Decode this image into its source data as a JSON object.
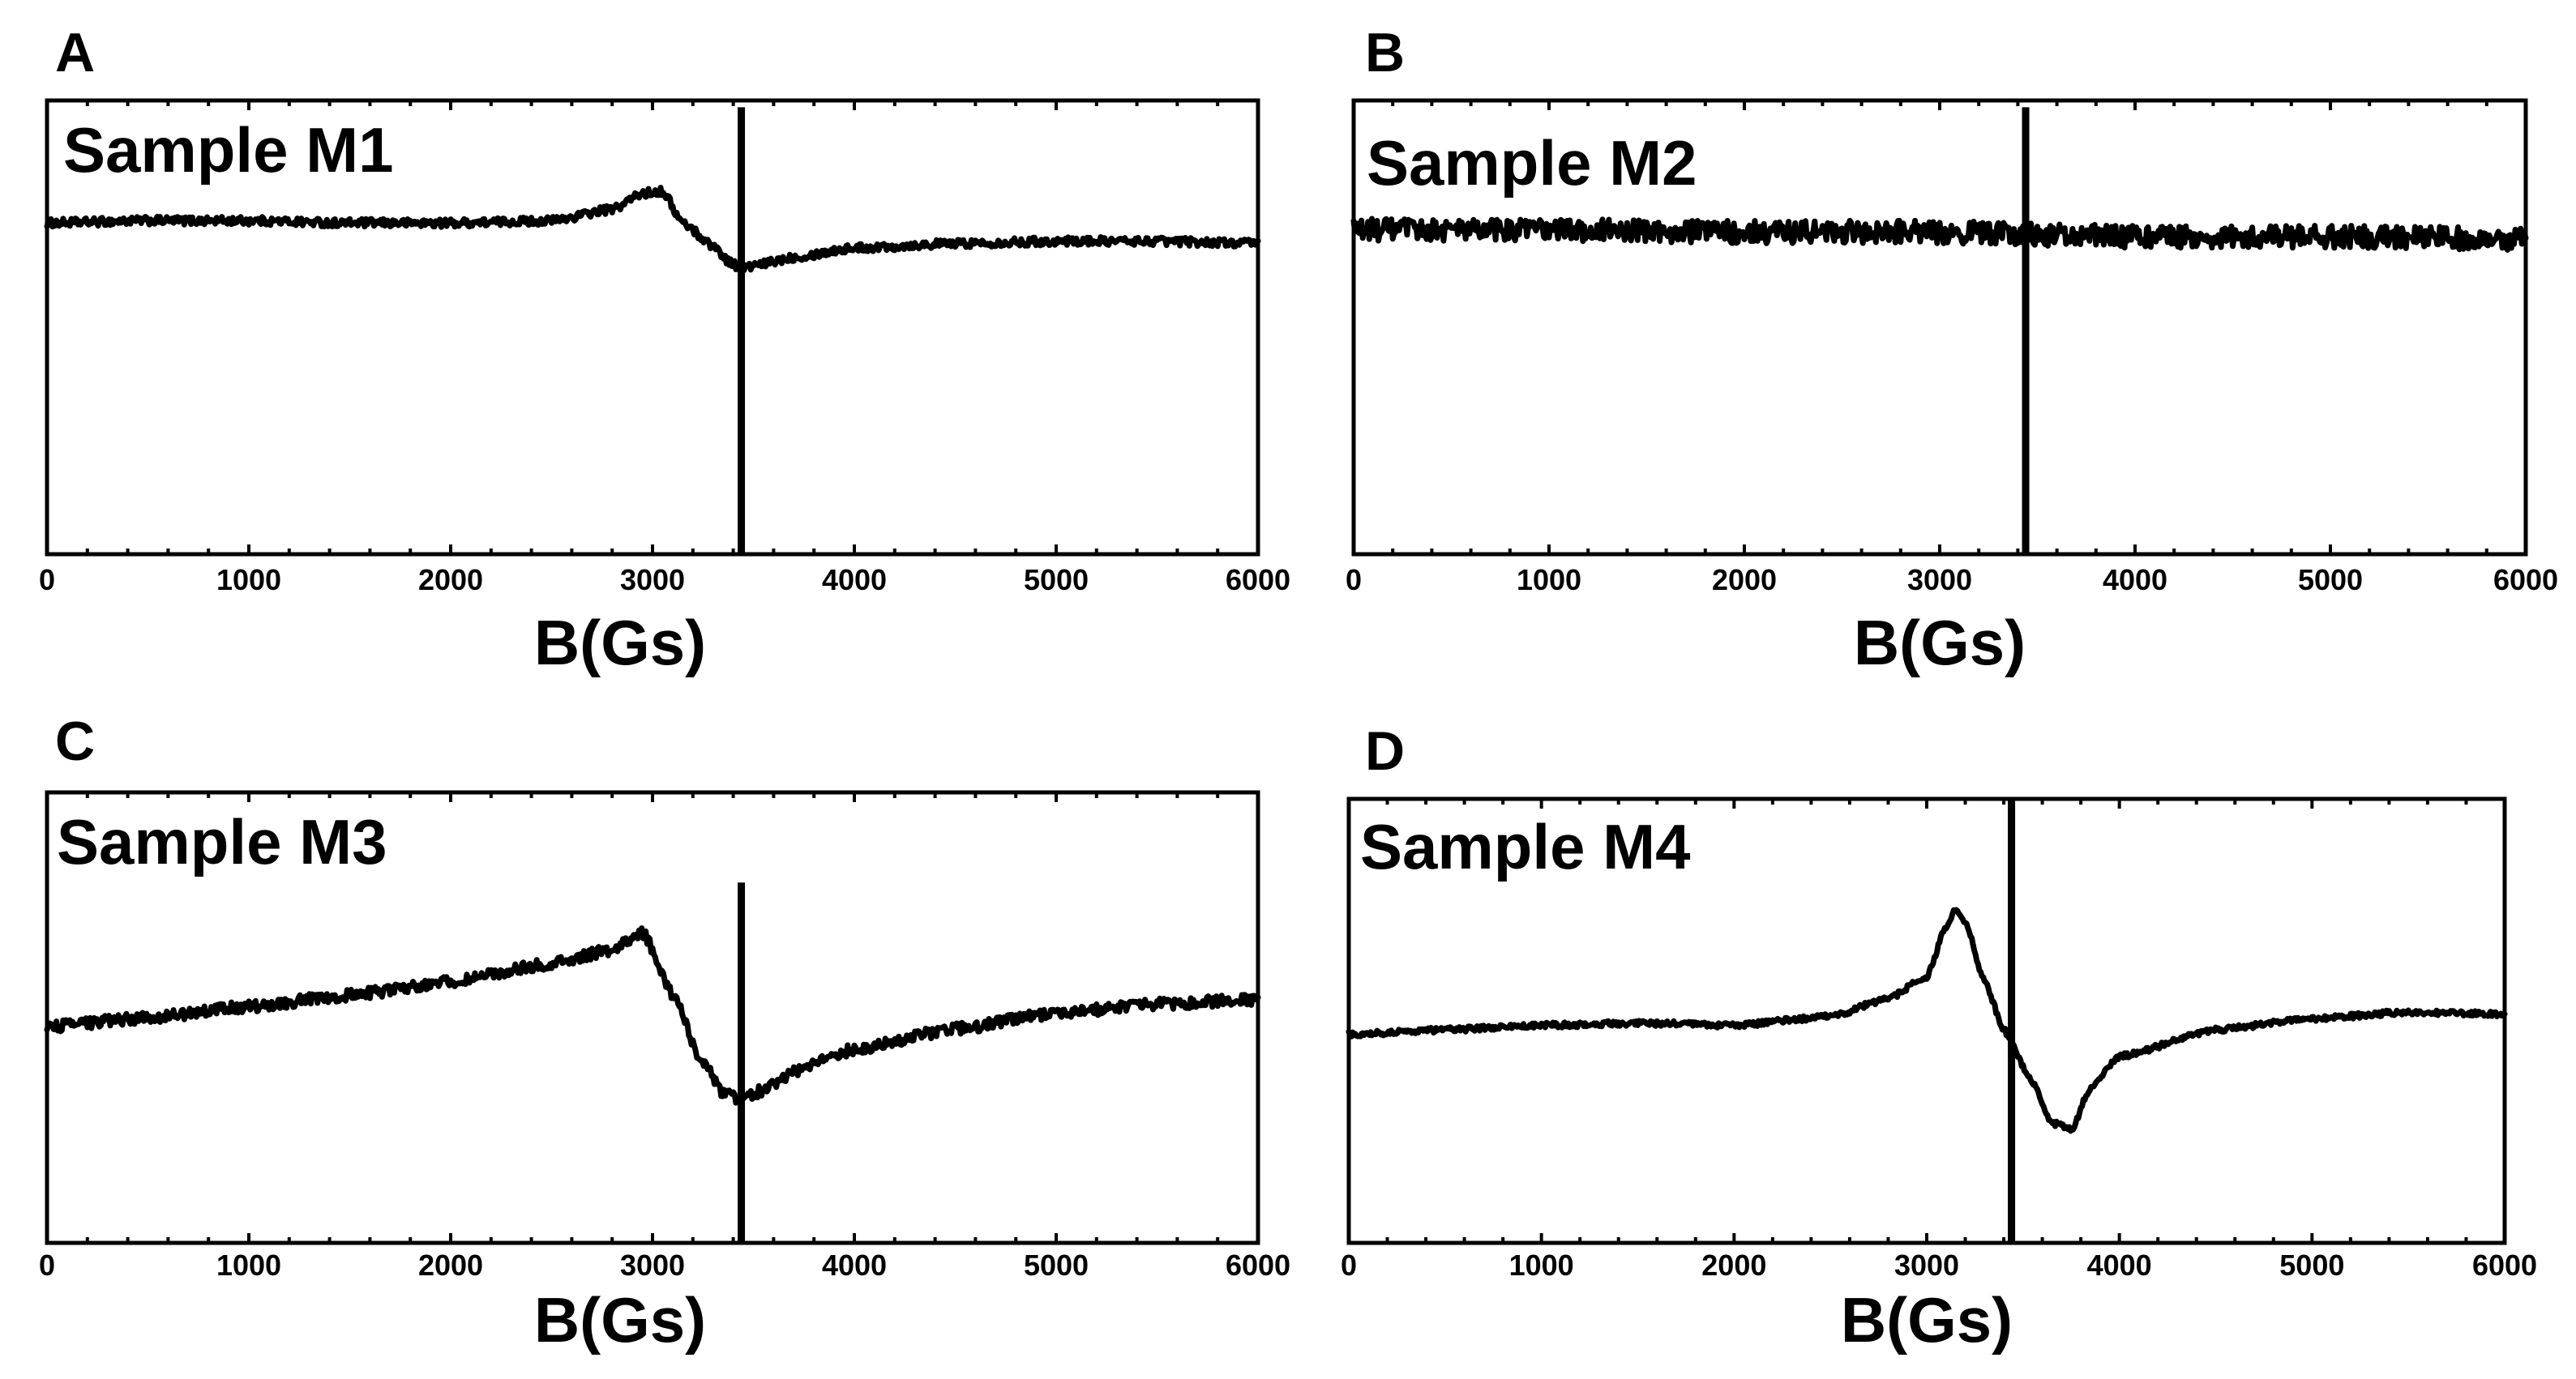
{
  "figure": {
    "colors": {
      "line": "#000000",
      "background": "#ffffff"
    }
  },
  "chart_data": [
    {
      "type": "line",
      "panel": "A",
      "title": "Sample M1",
      "xlabel": "B(Gs)",
      "ylabel": "",
      "xlim": [
        0,
        6000
      ],
      "ylim": [
        -1,
        1
      ],
      "xticks": [
        "0",
        "1000",
        "2000",
        "3000",
        "4000",
        "5000",
        "6000"
      ],
      "yticks_labeled": false,
      "grid": false,
      "reference_line_x": 3440,
      "reference_line_ylim": [
        -1,
        0.97
      ],
      "noise": 0.018,
      "x": [
        0,
        500,
        1000,
        1500,
        2000,
        2500,
        2800,
        2950,
        3050,
        3150,
        3300,
        3380,
        3440,
        3500,
        3700,
        4000,
        4500,
        5000,
        5500,
        6000
      ],
      "y": [
        0.46,
        0.47,
        0.47,
        0.46,
        0.46,
        0.47,
        0.52,
        0.59,
        0.6,
        0.46,
        0.36,
        0.29,
        0.26,
        0.27,
        0.31,
        0.35,
        0.37,
        0.38,
        0.38,
        0.37
      ]
    },
    {
      "type": "line",
      "panel": "B",
      "title": "Sample M2",
      "xlabel": "B(Gs)",
      "ylabel": "",
      "xlim": [
        0,
        6000
      ],
      "ylim": [
        -1,
        1
      ],
      "xticks": [
        "0",
        "1000",
        "2000",
        "3000",
        "4000",
        "5000",
        "6000"
      ],
      "yticks_labeled": false,
      "grid": false,
      "reference_line_x": 3440,
      "reference_line_ylim": [
        -1,
        0.97
      ],
      "noise": 0.05,
      "x": [
        0,
        1000,
        2000,
        3000,
        3440,
        4000,
        5000,
        6000
      ],
      "y": [
        0.43,
        0.43,
        0.42,
        0.42,
        0.41,
        0.4,
        0.4,
        0.39
      ]
    },
    {
      "type": "line",
      "panel": "C",
      "title": "Sample M3",
      "xlabel": "B(Gs)",
      "ylabel": "",
      "xlim": [
        0,
        6000
      ],
      "ylim": [
        -1,
        1
      ],
      "xticks": [
        "0",
        "1000",
        "2000",
        "3000",
        "4000",
        "5000",
        "6000"
      ],
      "yticks_labeled": false,
      "grid": false,
      "reference_line_x": 3440,
      "reference_line_ylim": [
        -1,
        0.6
      ],
      "noise": 0.025,
      "x": [
        0,
        500,
        1000,
        1500,
        2000,
        2500,
        2800,
        2950,
        3100,
        3250,
        3350,
        3450,
        3550,
        3700,
        4000,
        4500,
        5000,
        5500,
        6000
      ],
      "y": [
        -0.04,
        0.0,
        0.05,
        0.1,
        0.16,
        0.24,
        0.3,
        0.38,
        0.1,
        -0.2,
        -0.34,
        -0.36,
        -0.32,
        -0.24,
        -0.14,
        -0.05,
        0.02,
        0.06,
        0.08
      ]
    },
    {
      "type": "line",
      "panel": "D",
      "title": "Sample M4",
      "xlabel": "B(Gs)",
      "ylabel": "",
      "xlim": [
        0,
        6000
      ],
      "ylim": [
        -1,
        1
      ],
      "xticks": [
        "0",
        "1000",
        "2000",
        "3000",
        "4000",
        "5000",
        "6000"
      ],
      "yticks_labeled": false,
      "grid": false,
      "reference_line_x": 3440,
      "reference_line_ylim": [
        -1,
        1
      ],
      "noise": 0.012,
      "x": [
        0,
        500,
        1000,
        1500,
        2000,
        2500,
        2800,
        3000,
        3100,
        3150,
        3200,
        3300,
        3400,
        3550,
        3650,
        3750,
        3850,
        4000,
        4500,
        5000,
        5500,
        6000
      ],
      "y": [
        -0.06,
        -0.04,
        -0.02,
        -0.01,
        -0.02,
        0.02,
        0.1,
        0.2,
        0.42,
        0.5,
        0.44,
        0.18,
        -0.04,
        -0.28,
        -0.46,
        -0.49,
        -0.3,
        -0.16,
        -0.04,
        0.01,
        0.04,
        0.03
      ]
    }
  ]
}
